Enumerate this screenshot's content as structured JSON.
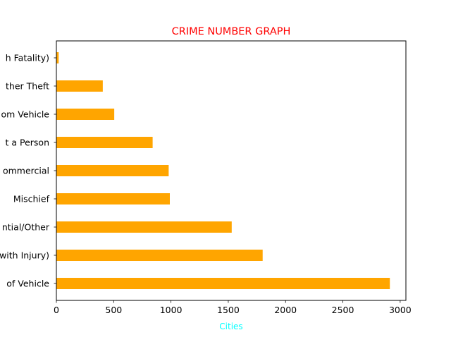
{
  "chart_data": {
    "type": "bar",
    "orientation": "horizontal",
    "title": "CRIME NUMBER GRAPH",
    "title_color": "#ff0000",
    "xlabel": "Cities",
    "xlabel_color": "#00ffff",
    "ylabel": "",
    "bar_color": "#ffa500",
    "grid": false,
    "xlim": [
      0,
      3050
    ],
    "x_ticks": [
      0,
      500,
      1000,
      1500,
      2000,
      2500,
      3000
    ],
    "categories": [
      "Theft of Vehicle",
      "Vehicle Collision or Pedestrian Struck (with Injury)",
      "Break and Enter Residential/Other",
      "Mischief",
      "Break and Enter Commercial",
      "Offence Against a Person",
      "Theft from Vehicle",
      "Other Theft",
      "Vehicle Collision or Pedestrian Struck (with Fatality)"
    ],
    "visible_labels": [
      "of Vehicle",
      "with Injury)",
      "ntial/Other",
      "Mischief",
      "ommercial",
      "t a Person",
      "om Vehicle",
      "ther Theft",
      "h Fatality)"
    ],
    "values": [
      2910,
      1800,
      1530,
      990,
      980,
      840,
      505,
      405,
      20
    ]
  }
}
